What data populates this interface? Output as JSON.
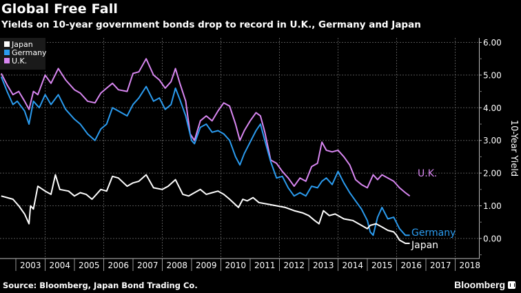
{
  "header": {
    "title": "Global Free Fall",
    "subtitle": "Yields on 10-year government bonds drop to record in U.K., Germany and Japan"
  },
  "footer": {
    "source": "Source: Bloomberg, Japan Bond Trading Co.",
    "brand": "Bloomberg"
  },
  "chart_data": {
    "type": "line",
    "title": "Global Free Fall",
    "subtitle": "Yields on 10-year government bonds drop to record in U.K., Germany and Japan",
    "xlabel": "",
    "ylabel": "10-Year Yield",
    "xlim": [
      2002.5,
      2018.8
    ],
    "ylim": [
      -0.6,
      6.2
    ],
    "grid": true,
    "legend_position": "top-left",
    "x_tick_labels": [
      "2003",
      "2004",
      "2005",
      "2006",
      "2007",
      "2008",
      "2009",
      "2010",
      "2011",
      "2012",
      "2013",
      "2014",
      "2015",
      "2016",
      "2017",
      "2018"
    ],
    "y_tick_labels": [
      "6.00",
      "5.00",
      "4.00",
      "3.00",
      "2.00",
      "1.00",
      "0.00"
    ],
    "y_ticks": [
      6,
      5,
      4,
      3,
      2,
      1,
      0
    ],
    "end_labels": [
      "U.K.",
      "Germany",
      "Japan"
    ],
    "series": [
      {
        "name": "Japan",
        "color": "#ffffff",
        "x": [
          2002.5,
          2002.7,
          2002.9,
          2003.1,
          2003.3,
          2003.45,
          2003.5,
          2003.6,
          2003.75,
          2004.0,
          2004.2,
          2004.35,
          2004.5,
          2004.8,
          2005.0,
          2005.2,
          2005.4,
          2005.6,
          2005.9,
          2006.1,
          2006.3,
          2006.5,
          2006.8,
          2007.0,
          2007.2,
          2007.45,
          2007.7,
          2008.0,
          2008.2,
          2008.45,
          2008.7,
          2008.9,
          2009.1,
          2009.3,
          2009.5,
          2009.7,
          2009.9,
          2010.1,
          2010.3,
          2010.6,
          2010.75,
          2010.9,
          2011.1,
          2011.3,
          2011.6,
          2011.9,
          2012.2,
          2012.5,
          2012.8,
          2013.0,
          2013.2,
          2013.35,
          2013.5,
          2013.7,
          2013.9,
          2014.2,
          2014.5,
          2014.8,
          2015.0,
          2015.1,
          2015.3,
          2015.5,
          2015.7,
          2015.9,
          2016.0,
          2016.1,
          2016.3,
          2016.45
        ],
        "y": [
          1.3,
          1.25,
          1.2,
          1.0,
          0.75,
          0.45,
          1.0,
          0.9,
          1.6,
          1.45,
          1.35,
          1.95,
          1.5,
          1.45,
          1.3,
          1.4,
          1.35,
          1.2,
          1.5,
          1.45,
          1.9,
          1.85,
          1.6,
          1.7,
          1.75,
          1.95,
          1.55,
          1.5,
          1.6,
          1.8,
          1.35,
          1.3,
          1.4,
          1.5,
          1.35,
          1.4,
          1.45,
          1.35,
          1.2,
          0.95,
          1.2,
          1.15,
          1.25,
          1.1,
          1.05,
          1.0,
          0.95,
          0.85,
          0.78,
          0.7,
          0.55,
          0.45,
          0.85,
          0.7,
          0.75,
          0.6,
          0.55,
          0.4,
          0.3,
          0.4,
          0.45,
          0.35,
          0.25,
          0.2,
          0.1,
          -0.05,
          -0.15,
          -0.15
        ]
      },
      {
        "name": "Germany",
        "color": "#2b9cf0",
        "x": [
          2002.5,
          2002.7,
          2002.9,
          2003.05,
          2003.3,
          2003.45,
          2003.6,
          2003.8,
          2004.0,
          2004.2,
          2004.45,
          2004.7,
          2005.0,
          2005.2,
          2005.45,
          2005.7,
          2005.9,
          2006.1,
          2006.3,
          2006.5,
          2006.8,
          2007.0,
          2007.2,
          2007.45,
          2007.7,
          2007.9,
          2008.1,
          2008.3,
          2008.45,
          2008.6,
          2008.8,
          2009.0,
          2009.1,
          2009.3,
          2009.5,
          2009.7,
          2009.9,
          2010.1,
          2010.3,
          2010.5,
          2010.65,
          2010.8,
          2011.0,
          2011.2,
          2011.35,
          2011.5,
          2011.7,
          2011.9,
          2012.1,
          2012.3,
          2012.5,
          2012.7,
          2012.9,
          2013.1,
          2013.3,
          2013.45,
          2013.6,
          2013.8,
          2014.0,
          2014.2,
          2014.4,
          2014.6,
          2014.8,
          2015.0,
          2015.1,
          2015.2,
          2015.35,
          2015.5,
          2015.7,
          2015.9,
          2016.1,
          2016.3,
          2016.45
        ],
        "y": [
          4.95,
          4.5,
          4.1,
          4.2,
          3.9,
          3.5,
          4.2,
          4.0,
          4.4,
          4.1,
          4.4,
          3.95,
          3.65,
          3.5,
          3.2,
          3.0,
          3.35,
          3.5,
          4.0,
          3.9,
          3.75,
          4.1,
          4.3,
          4.65,
          4.2,
          4.3,
          3.95,
          4.1,
          4.6,
          4.25,
          3.75,
          3.0,
          2.9,
          3.4,
          3.5,
          3.25,
          3.3,
          3.2,
          3.0,
          2.5,
          2.25,
          2.6,
          2.95,
          3.3,
          3.5,
          3.0,
          2.35,
          1.85,
          1.9,
          1.55,
          1.3,
          1.4,
          1.3,
          1.6,
          1.55,
          1.75,
          1.85,
          1.65,
          2.05,
          1.7,
          1.4,
          1.15,
          0.9,
          0.55,
          0.2,
          0.1,
          0.65,
          0.95,
          0.6,
          0.65,
          0.3,
          0.1,
          0.1
        ]
      },
      {
        "name": "U.K.",
        "color": "#d987f2",
        "x": [
          2002.5,
          2002.7,
          2002.9,
          2003.1,
          2003.3,
          2003.45,
          2003.6,
          2003.75,
          2004.0,
          2004.2,
          2004.45,
          2004.7,
          2005.0,
          2005.2,
          2005.45,
          2005.7,
          2005.9,
          2006.1,
          2006.3,
          2006.5,
          2006.8,
          2007.0,
          2007.2,
          2007.45,
          2007.7,
          2007.9,
          2008.1,
          2008.3,
          2008.45,
          2008.6,
          2008.8,
          2008.95,
          2009.1,
          2009.3,
          2009.5,
          2009.7,
          2009.9,
          2010.1,
          2010.3,
          2010.5,
          2010.65,
          2010.8,
          2011.0,
          2011.2,
          2011.35,
          2011.5,
          2011.7,
          2011.9,
          2012.1,
          2012.3,
          2012.5,
          2012.7,
          2012.9,
          2013.1,
          2013.3,
          2013.45,
          2013.6,
          2013.8,
          2014.0,
          2014.2,
          2014.4,
          2014.6,
          2014.8,
          2015.0,
          2015.2,
          2015.35,
          2015.5,
          2015.7,
          2015.9,
          2016.1,
          2016.3,
          2016.45
        ],
        "y": [
          5.05,
          4.7,
          4.4,
          4.5,
          4.2,
          3.95,
          4.5,
          4.4,
          5.0,
          4.75,
          5.2,
          4.85,
          4.55,
          4.45,
          4.2,
          4.15,
          4.45,
          4.6,
          4.75,
          4.55,
          4.5,
          5.05,
          5.1,
          5.5,
          5.0,
          4.85,
          4.6,
          4.8,
          5.2,
          4.75,
          4.2,
          3.2,
          3.0,
          3.6,
          3.75,
          3.6,
          3.9,
          4.15,
          4.05,
          3.5,
          3.0,
          3.3,
          3.6,
          3.85,
          3.75,
          3.25,
          2.4,
          2.3,
          2.05,
          1.85,
          1.6,
          1.85,
          1.75,
          2.2,
          2.3,
          2.95,
          2.7,
          2.65,
          2.7,
          2.5,
          2.25,
          1.8,
          1.65,
          1.55,
          1.95,
          1.8,
          1.95,
          1.85,
          1.75,
          1.55,
          1.4,
          1.3
        ]
      }
    ]
  }
}
